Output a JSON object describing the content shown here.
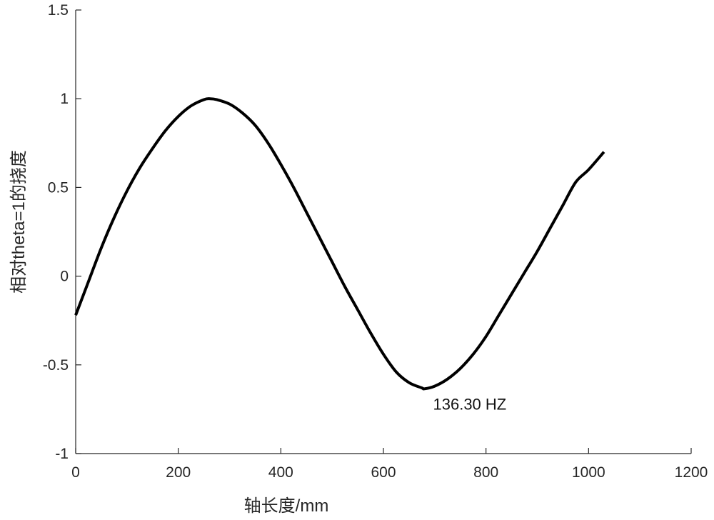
{
  "chart_data": {
    "type": "line",
    "title": "",
    "xlabel": "轴长度/mm",
    "ylabel": "相对theta=1的挠度",
    "xlim": [
      0,
      1200
    ],
    "ylim": [
      -1,
      1.5
    ],
    "xticks": [
      0,
      200,
      400,
      600,
      800,
      1000,
      1200
    ],
    "yticks": [
      -1,
      -0.5,
      0,
      0.5,
      1,
      1.5
    ],
    "xtick_labels": [
      "0",
      "200",
      "400",
      "600",
      "800",
      "1000",
      "1200"
    ],
    "ytick_labels": [
      "-1",
      "-0.5",
      "0",
      "0.5",
      "1",
      "1.5"
    ],
    "grid": false,
    "line_color": "#000000",
    "annotation": {
      "text": "136.30 HZ",
      "x": 900,
      "y": -0.72
    },
    "series": [
      {
        "x": [
          0,
          25,
          50,
          75,
          100,
          125,
          150,
          175,
          200,
          225,
          250,
          262,
          275,
          300,
          325,
          350,
          375,
          400,
          425,
          450,
          475,
          500,
          525,
          550,
          575,
          600,
          625,
          650,
          675,
          680,
          700,
          725,
          750,
          775,
          800,
          825,
          850,
          875,
          900,
          925,
          950,
          975,
          1000,
          1030
        ],
        "y": [
          -0.22,
          -0.03,
          0.16,
          0.33,
          0.48,
          0.61,
          0.72,
          0.82,
          0.9,
          0.96,
          0.995,
          1.0,
          0.995,
          0.97,
          0.92,
          0.85,
          0.75,
          0.63,
          0.5,
          0.36,
          0.22,
          0.08,
          -0.06,
          -0.19,
          -0.32,
          -0.44,
          -0.54,
          -0.6,
          -0.63,
          -0.635,
          -0.62,
          -0.58,
          -0.52,
          -0.44,
          -0.34,
          -0.22,
          -0.1,
          0.02,
          0.14,
          0.27,
          0.4,
          0.53,
          0.6,
          0.7
        ]
      }
    ]
  }
}
